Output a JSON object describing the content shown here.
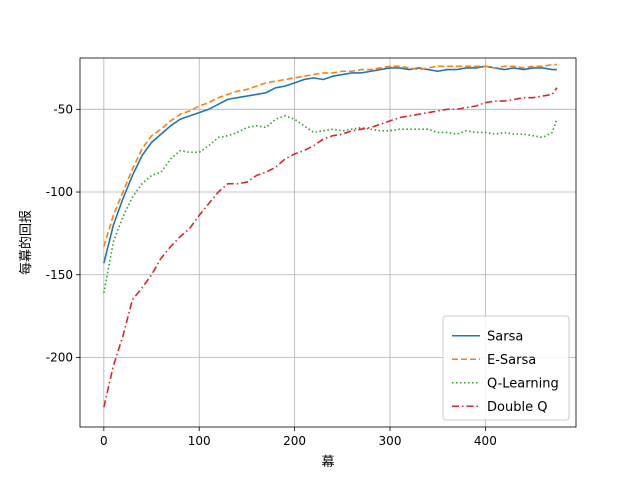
{
  "chart_data": {
    "type": "line",
    "title": "",
    "xlabel": "幕",
    "ylabel": "每幕的回报",
    "xlim": [
      -25,
      495
    ],
    "ylim": [
      -242,
      -19
    ],
    "x_ticks": [
      0,
      100,
      200,
      300,
      400
    ],
    "x_tick_labels": [
      "0",
      "100",
      "200",
      "300",
      "400"
    ],
    "y_ticks": [
      -200,
      -150,
      -100,
      -50
    ],
    "y_tick_labels": [
      "-200",
      "-150",
      "-100",
      "-50"
    ],
    "grid": true,
    "legend_position": "lower-right",
    "x": [
      0,
      10,
      20,
      30,
      40,
      50,
      60,
      70,
      80,
      90,
      100,
      110,
      120,
      130,
      140,
      150,
      160,
      170,
      180,
      190,
      200,
      210,
      220,
      230,
      240,
      250,
      260,
      270,
      280,
      290,
      300,
      310,
      320,
      330,
      340,
      350,
      360,
      370,
      380,
      390,
      400,
      410,
      420,
      430,
      440,
      450,
      460,
      470,
      475
    ],
    "series": [
      {
        "name": "Sarsa",
        "color": "#1f77b4",
        "dash": "solid",
        "values": [
          -143,
          -120,
          -104,
          -90,
          -78,
          -70,
          -65,
          -60,
          -56,
          -54,
          -52,
          -50,
          -47,
          -44,
          -43,
          -42,
          -41,
          -40,
          -37,
          -36,
          -34,
          -32,
          -31,
          -32,
          -30,
          -29,
          -28,
          -28,
          -27,
          -26,
          -25,
          -25,
          -26,
          -25,
          -26,
          -27,
          -26,
          -26,
          -25,
          -25,
          -24,
          -25,
          -26,
          -25,
          -26,
          -25,
          -25,
          -26,
          -26
        ]
      },
      {
        "name": "E-Sarsa",
        "color": "#ff7f0e",
        "dash": "dashed",
        "values": [
          -133,
          -114,
          -100,
          -86,
          -74,
          -66,
          -62,
          -57,
          -53,
          -51,
          -48,
          -46,
          -43,
          -41,
          -39,
          -38,
          -36,
          -34,
          -33,
          -32,
          -31,
          -30,
          -29,
          -28,
          -28,
          -27,
          -27,
          -26,
          -26,
          -25,
          -24,
          -24,
          -25,
          -26,
          -25,
          -24,
          -24,
          -24,
          -24,
          -24,
          -24,
          -25,
          -24,
          -24,
          -25,
          -24,
          -24,
          -23,
          -23
        ]
      },
      {
        "name": "Q-Learning",
        "color": "#2ca02c",
        "dash": "dotted",
        "values": [
          -161,
          -130,
          -115,
          -103,
          -95,
          -90,
          -88,
          -80,
          -75,
          -76,
          -76,
          -72,
          -67,
          -66,
          -64,
          -61,
          -60,
          -61,
          -56,
          -54,
          -56,
          -60,
          -64,
          -63,
          -62,
          -63,
          -62,
          -61,
          -62,
          -63,
          -63,
          -62,
          -62,
          -62,
          -62,
          -64,
          -64,
          -65,
          -63,
          -64,
          -64,
          -65,
          -64,
          -65,
          -65,
          -66,
          -67,
          -64,
          -56
        ]
      },
      {
        "name": "Double Q",
        "color": "#d62728",
        "dash": "dashdot",
        "values": [
          -230,
          -205,
          -187,
          -165,
          -158,
          -150,
          -140,
          -133,
          -127,
          -122,
          -114,
          -107,
          -100,
          -95,
          -95,
          -94,
          -90,
          -88,
          -85,
          -80,
          -77,
          -75,
          -72,
          -68,
          -66,
          -65,
          -63,
          -62,
          -61,
          -59,
          -57,
          -55,
          -54,
          -53,
          -52,
          -51,
          -50,
          -50,
          -49,
          -48,
          -46,
          -45,
          -45,
          -44,
          -43,
          -43,
          -42,
          -41,
          -37
        ]
      }
    ]
  }
}
